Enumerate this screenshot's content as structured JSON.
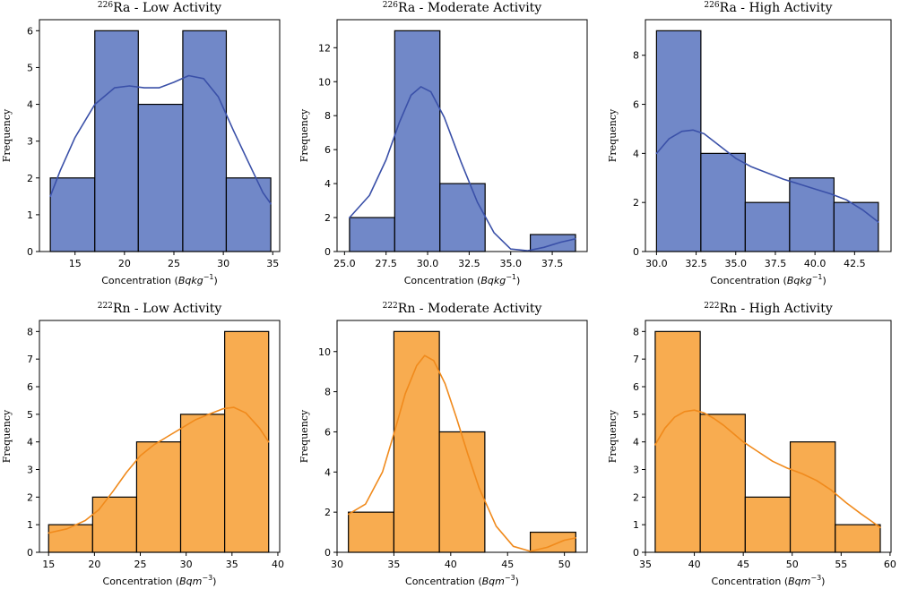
{
  "chart_data": [
    {
      "type": "bar",
      "title_parts": {
        "iso": "226",
        "el": "Ra",
        "rest": " - Low Activity"
      },
      "xlabel_parts": {
        "pre": "Concentration (",
        "unit": "Bqkg",
        "sup": "−1",
        "post": ")"
      },
      "ylabel": "Frequency",
      "color": "#7188c8",
      "line_color": "#3a50a8",
      "xlim": [
        11.4,
        35.7
      ],
      "ylim": [
        0,
        6.3
      ],
      "xticks": [
        15,
        20,
        25,
        30,
        35
      ],
      "xtick_labels": [
        "15",
        "20",
        "25",
        "30",
        "35"
      ],
      "yticks": [
        0,
        1,
        2,
        3,
        4,
        5,
        6
      ],
      "bins": [
        12.5,
        17.0,
        21.4,
        25.9,
        30.3,
        34.8
      ],
      "counts": [
        2,
        6,
        4,
        6,
        2
      ],
      "kde_x": [
        12.5,
        13.5,
        15,
        17,
        19,
        20.5,
        22,
        23.5,
        25,
        26.5,
        28,
        29.5,
        31,
        32.5,
        34,
        34.8
      ],
      "kde_y": [
        1.5,
        2.2,
        3.1,
        4.0,
        4.45,
        4.5,
        4.45,
        4.45,
        4.6,
        4.78,
        4.7,
        4.2,
        3.3,
        2.45,
        1.6,
        1.3
      ]
    },
    {
      "type": "bar",
      "title_parts": {
        "iso": "226",
        "el": "Ra",
        "rest": " - Moderate Activity"
      },
      "xlabel_parts": {
        "pre": "Concentration (",
        "unit": "Bqkg",
        "sup": "−1",
        "post": ")"
      },
      "ylabel": "Frequency",
      "color": "#7188c8",
      "line_color": "#3a50a8",
      "xlim": [
        24.55,
        39.6
      ],
      "ylim": [
        0,
        13.65
      ],
      "xticks": [
        25,
        27.5,
        30,
        32.5,
        35,
        37.5
      ],
      "xtick_labels": [
        "25.0",
        "27.5",
        "30.0",
        "32.5",
        "35.0",
        "37.5"
      ],
      "yticks": [
        0,
        2,
        4,
        6,
        8,
        10,
        12
      ],
      "bins": [
        25.3,
        28.02,
        30.74,
        33.46,
        36.18,
        38.9
      ],
      "counts": [
        2,
        13,
        4,
        0,
        1
      ],
      "kde_x": [
        25.3,
        26.5,
        27.5,
        28.3,
        29.0,
        29.6,
        30.2,
        31.0,
        32.0,
        33.0,
        34.0,
        35.0,
        36.0,
        37.0,
        38.0,
        38.9
      ],
      "kde_y": [
        2.0,
        3.3,
        5.4,
        7.6,
        9.2,
        9.7,
        9.4,
        7.9,
        5.3,
        2.9,
        1.1,
        0.15,
        0.05,
        0.25,
        0.55,
        0.75
      ]
    },
    {
      "type": "bar",
      "title_parts": {
        "iso": "226",
        "el": "Ra",
        "rest": " - High Activity"
      },
      "xlabel_parts": {
        "pre": "Concentration (",
        "unit": "Bqkg",
        "sup": "−1",
        "post": ")"
      },
      "ylabel": "Frequency",
      "color": "#7188c8",
      "line_color": "#3a50a8",
      "xlim": [
        29.3,
        44.8
      ],
      "ylim": [
        0,
        9.45
      ],
      "xticks": [
        30,
        32.5,
        35,
        37.5,
        40,
        42.5
      ],
      "xtick_labels": [
        "30.0",
        "32.5",
        "35.0",
        "37.5",
        "40.0",
        "42.5"
      ],
      "yticks": [
        0,
        2,
        4,
        6,
        8
      ],
      "bins": [
        30.0,
        32.8,
        35.6,
        38.4,
        41.2,
        44.0
      ],
      "counts": [
        9,
        4,
        2,
        3,
        2
      ],
      "kde_x": [
        30.0,
        30.8,
        31.6,
        32.3,
        33.0,
        34.0,
        35.0,
        36.0,
        37.0,
        38.0,
        39.0,
        40.0,
        41.0,
        42.0,
        43.0,
        44.0
      ],
      "kde_y": [
        4.0,
        4.6,
        4.9,
        4.95,
        4.8,
        4.3,
        3.8,
        3.45,
        3.2,
        2.95,
        2.75,
        2.55,
        2.35,
        2.1,
        1.7,
        1.2
      ]
    },
    {
      "type": "bar",
      "title_parts": {
        "iso": "222",
        "el": "Rn",
        "rest": " - Low Activity"
      },
      "xlabel_parts": {
        "pre": "Concentration (",
        "unit": "Bqm",
        "sup": "−3",
        "post": ")"
      },
      "ylabel": "Frequency",
      "color": "#f8ac50",
      "line_color": "#f08a1c",
      "xlim": [
        14.0,
        40.2
      ],
      "ylim": [
        0,
        8.4
      ],
      "xticks": [
        15,
        20,
        25,
        30,
        35,
        40
      ],
      "xtick_labels": [
        "15",
        "20",
        "25",
        "30",
        "35",
        "40"
      ],
      "yticks": [
        0,
        1,
        2,
        3,
        4,
        5,
        6,
        7,
        8
      ],
      "bins": [
        15.0,
        19.8,
        24.6,
        29.4,
        34.2,
        39.0
      ],
      "counts": [
        1,
        2,
        4,
        5,
        8
      ],
      "kde_x": [
        15,
        17,
        19,
        20.5,
        22,
        23.5,
        25,
        26.5,
        28,
        29.5,
        31,
        32.5,
        34,
        35.2,
        36.5,
        38,
        39
      ],
      "kde_y": [
        0.7,
        0.85,
        1.15,
        1.55,
        2.2,
        2.9,
        3.5,
        3.9,
        4.2,
        4.5,
        4.8,
        5.0,
        5.2,
        5.25,
        5.05,
        4.5,
        4.0
      ]
    },
    {
      "type": "bar",
      "title_parts": {
        "iso": "222",
        "el": "Rn",
        "rest": " - Moderate Activity"
      },
      "xlabel_parts": {
        "pre": "Concentration (",
        "unit": "Bqm",
        "sup": "−3",
        "post": ")"
      },
      "ylabel": "Frequency",
      "color": "#f8ac50",
      "line_color": "#f08a1c",
      "xlim": [
        30.0,
        52.0
      ],
      "ylim": [
        0,
        11.55
      ],
      "xticks": [
        30,
        35,
        40,
        45,
        50
      ],
      "xtick_labels": [
        "30",
        "35",
        "40",
        "45",
        "50"
      ],
      "yticks": [
        0,
        2,
        4,
        6,
        8,
        10
      ],
      "bins": [
        31.0,
        35.0,
        39.0,
        43.0,
        47.0,
        51.0
      ],
      "counts": [
        2,
        11,
        6,
        0,
        1
      ],
      "kde_x": [
        31.0,
        32.5,
        34.0,
        35.0,
        36.0,
        37.0,
        37.7,
        38.5,
        39.5,
        40.5,
        41.5,
        42.5,
        44.0,
        45.5,
        47.0,
        48.5,
        50.0,
        51.0
      ],
      "kde_y": [
        1.9,
        2.4,
        4.0,
        5.9,
        7.9,
        9.3,
        9.8,
        9.55,
        8.4,
        6.7,
        4.9,
        3.2,
        1.3,
        0.3,
        0.05,
        0.25,
        0.6,
        0.72
      ]
    },
    {
      "type": "bar",
      "title_parts": {
        "iso": "222",
        "el": "Rn",
        "rest": " - High Activity"
      },
      "xlabel_parts": {
        "pre": "Concentration (",
        "unit": "Bqm",
        "sup": "−3",
        "post": ")"
      },
      "ylabel": "Frequency",
      "color": "#f8ac50",
      "line_color": "#f08a1c",
      "xlim": [
        35.0,
        60.1
      ],
      "ylim": [
        0,
        8.4
      ],
      "xticks": [
        35,
        40,
        45,
        50,
        55,
        60
      ],
      "xtick_labels": [
        "35",
        "40",
        "45",
        "50",
        "55",
        "60"
      ],
      "yticks": [
        0,
        1,
        2,
        3,
        4,
        5,
        6,
        7,
        8
      ],
      "bins": [
        36.0,
        40.6,
        45.2,
        49.8,
        54.4,
        59.0
      ],
      "counts": [
        8,
        5,
        2,
        4,
        1
      ],
      "kde_x": [
        36,
        37,
        38,
        39,
        40,
        41,
        42,
        43,
        44,
        45,
        46.5,
        48,
        49.5,
        51,
        52.5,
        54,
        55.5,
        57,
        58,
        59
      ],
      "kde_y": [
        3.9,
        4.5,
        4.9,
        5.1,
        5.15,
        5.05,
        4.85,
        4.6,
        4.3,
        4.0,
        3.65,
        3.3,
        3.05,
        2.85,
        2.6,
        2.25,
        1.8,
        1.4,
        1.15,
        0.9
      ]
    }
  ]
}
